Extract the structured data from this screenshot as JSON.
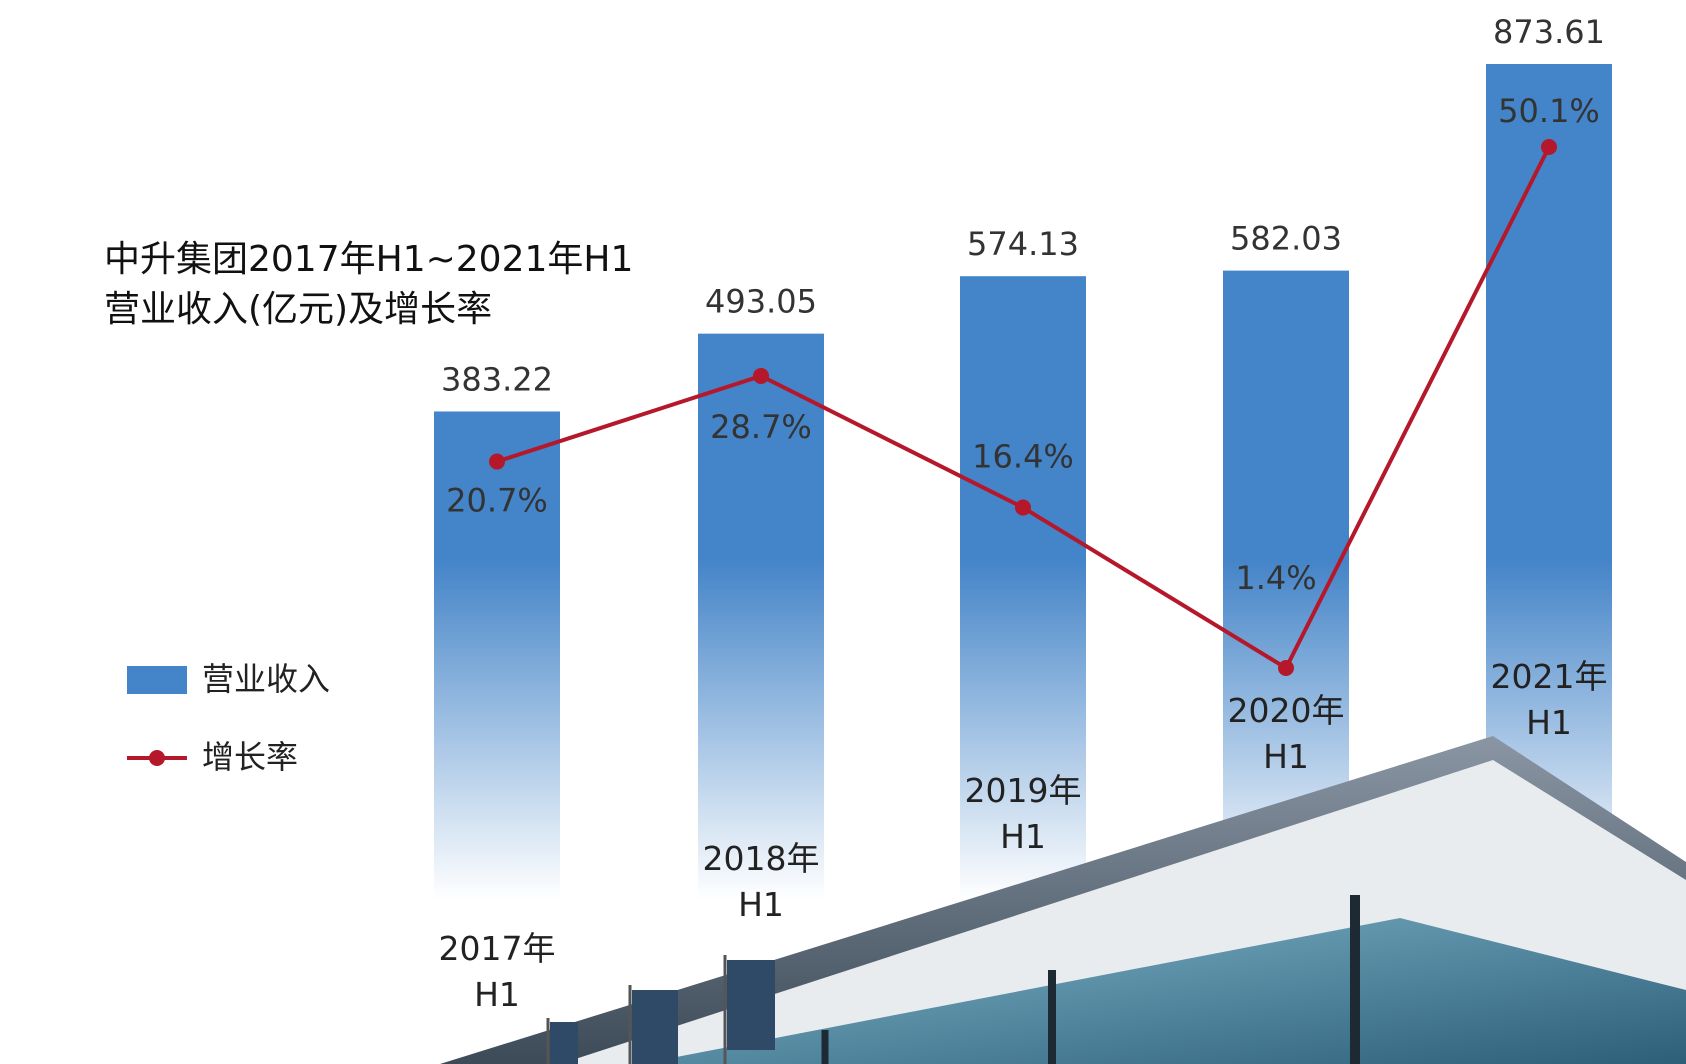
{
  "chart_data": {
    "type": "bar_line",
    "title": "中升集团2017年H1~2021年H1",
    "subtitle": "营业收入(亿元)及增长率",
    "categories": [
      "2017年H1",
      "2018年H1",
      "2019年H1",
      "2020年H1",
      "2021年H1"
    ],
    "series": [
      {
        "name": "营业收入",
        "color": "#4484c8",
        "type": "bar",
        "values": [
          383.22,
          493.05,
          574.13,
          582.03,
          873.61
        ]
      },
      {
        "name": "增长率",
        "color": "#b5182a",
        "type": "line",
        "values": [
          20.7,
          28.7,
          16.4,
          1.4,
          50.1
        ],
        "value_labels": [
          "20.7%",
          "28.7%",
          "16.4%",
          "1.4%",
          "50.1%"
        ]
      }
    ]
  }
}
